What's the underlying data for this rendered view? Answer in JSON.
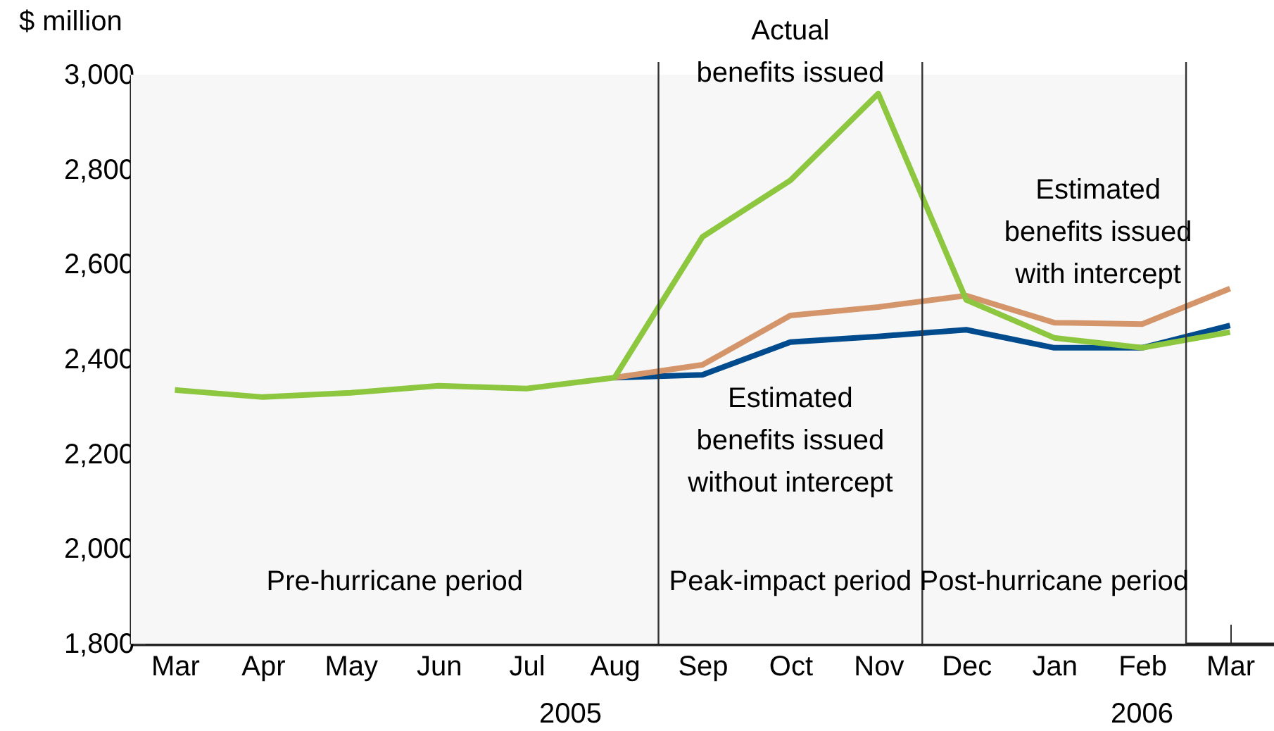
{
  "chart_data": {
    "type": "line",
    "ylabel": "$ million",
    "categories": [
      "Mar",
      "Apr",
      "May",
      "Jun",
      "Jul",
      "Aug",
      "Sep",
      "Oct",
      "Nov",
      "Dec",
      "Jan",
      "Feb",
      "Mar"
    ],
    "series": [
      {
        "name": "Estimated benefits issued without intercept",
        "color": "#004b8d",
        "values": [
          null,
          null,
          null,
          null,
          null,
          2361,
          2367,
          2436,
          2448,
          2462,
          2424,
          2424,
          2471
        ]
      },
      {
        "name": "Estimated benefits issued with intercept",
        "color": "#d4956b",
        "values": [
          null,
          null,
          null,
          null,
          null,
          2361,
          2388,
          2492,
          2510,
          2534,
          2477,
          2474,
          2549
        ]
      },
      {
        "name": "Actual benefits issued",
        "color": "#8dc63f",
        "values": [
          2335,
          2320,
          2329,
          2344,
          2338,
          2361,
          2658,
          2777,
          2960,
          2525,
          2445,
          2424,
          2457
        ]
      }
    ],
    "bands": [
      {
        "axis": "x",
        "from": "Mar",
        "to": "Aug",
        "label": "Pre-hurricane period",
        "color": "#f7f7f7"
      },
      {
        "axis": "x",
        "from": "Sep",
        "to": "Nov",
        "label": "Peak-impact period",
        "color": "#f7f7f7"
      },
      {
        "axis": "x",
        "from": "Dec",
        "to": "Feb",
        "label": "Post-hurricane period",
        "color": "#f7f7f7"
      }
    ],
    "annotations": [
      "2005",
      "2006"
    ],
    "ylim": [
      1800,
      3000
    ],
    "yticks": [
      {
        "value": 1800,
        "label": "1,800"
      },
      {
        "value": 2000,
        "label": "2,000"
      },
      {
        "value": 2200,
        "label": "2,200"
      },
      {
        "value": 2400,
        "label": "2,400"
      },
      {
        "value": 2600,
        "label": "2,600"
      },
      {
        "value": 2800,
        "label": "2,800"
      },
      {
        "value": 3000,
        "label": "3,000"
      }
    ],
    "marker": "none",
    "line_style": "solid"
  }
}
